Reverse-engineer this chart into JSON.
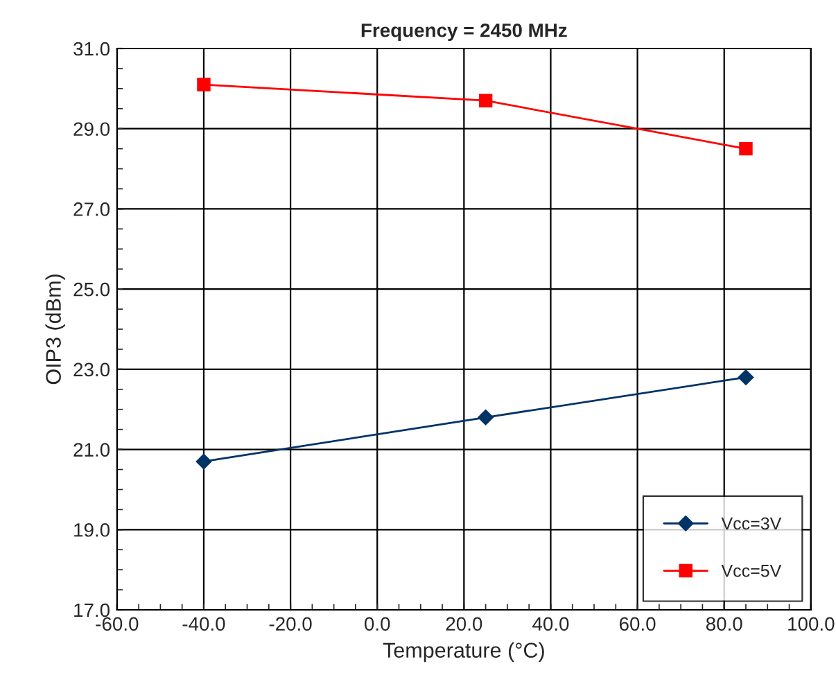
{
  "chart_data": {
    "type": "line",
    "title": "Frequency = 2450 MHz",
    "xlabel": "Temperature (°C)",
    "ylabel": "OIP3 (dBm)",
    "x": [
      -40,
      25,
      85
    ],
    "series": [
      {
        "name": "Vcc=3V",
        "color": "#003366",
        "values": [
          20.7,
          21.8,
          22.8
        ],
        "marker": "diamond"
      },
      {
        "name": "Vcc=5V",
        "color": "#ff0000",
        "values": [
          30.1,
          29.7,
          28.5
        ],
        "marker": "square"
      }
    ],
    "xlim": [
      -60,
      100
    ],
    "ylim": [
      17,
      31
    ],
    "xticks": [
      {
        "value": -60,
        "label": "-60.0"
      },
      {
        "value": -40,
        "label": "-40.0"
      },
      {
        "value": -20,
        "label": "-20.0"
      },
      {
        "value": 0,
        "label": "0.0"
      },
      {
        "value": 20,
        "label": "20.0"
      },
      {
        "value": 40,
        "label": "40.0"
      },
      {
        "value": 60,
        "label": "60.0"
      },
      {
        "value": 80,
        "label": "80.0"
      },
      {
        "value": 100,
        "label": "100.0"
      }
    ],
    "yticks": [
      {
        "value": 17,
        "label": "17.0"
      },
      {
        "value": 19,
        "label": "19.0"
      },
      {
        "value": 21,
        "label": "21.0"
      },
      {
        "value": 23,
        "label": "23.0"
      },
      {
        "value": 25,
        "label": "25.0"
      },
      {
        "value": 27,
        "label": "27.0"
      },
      {
        "value": 29,
        "label": "29.0"
      },
      {
        "value": 31,
        "label": "31.0"
      }
    ],
    "grid": true,
    "legend": "bottom right",
    "line_style": "solid"
  }
}
